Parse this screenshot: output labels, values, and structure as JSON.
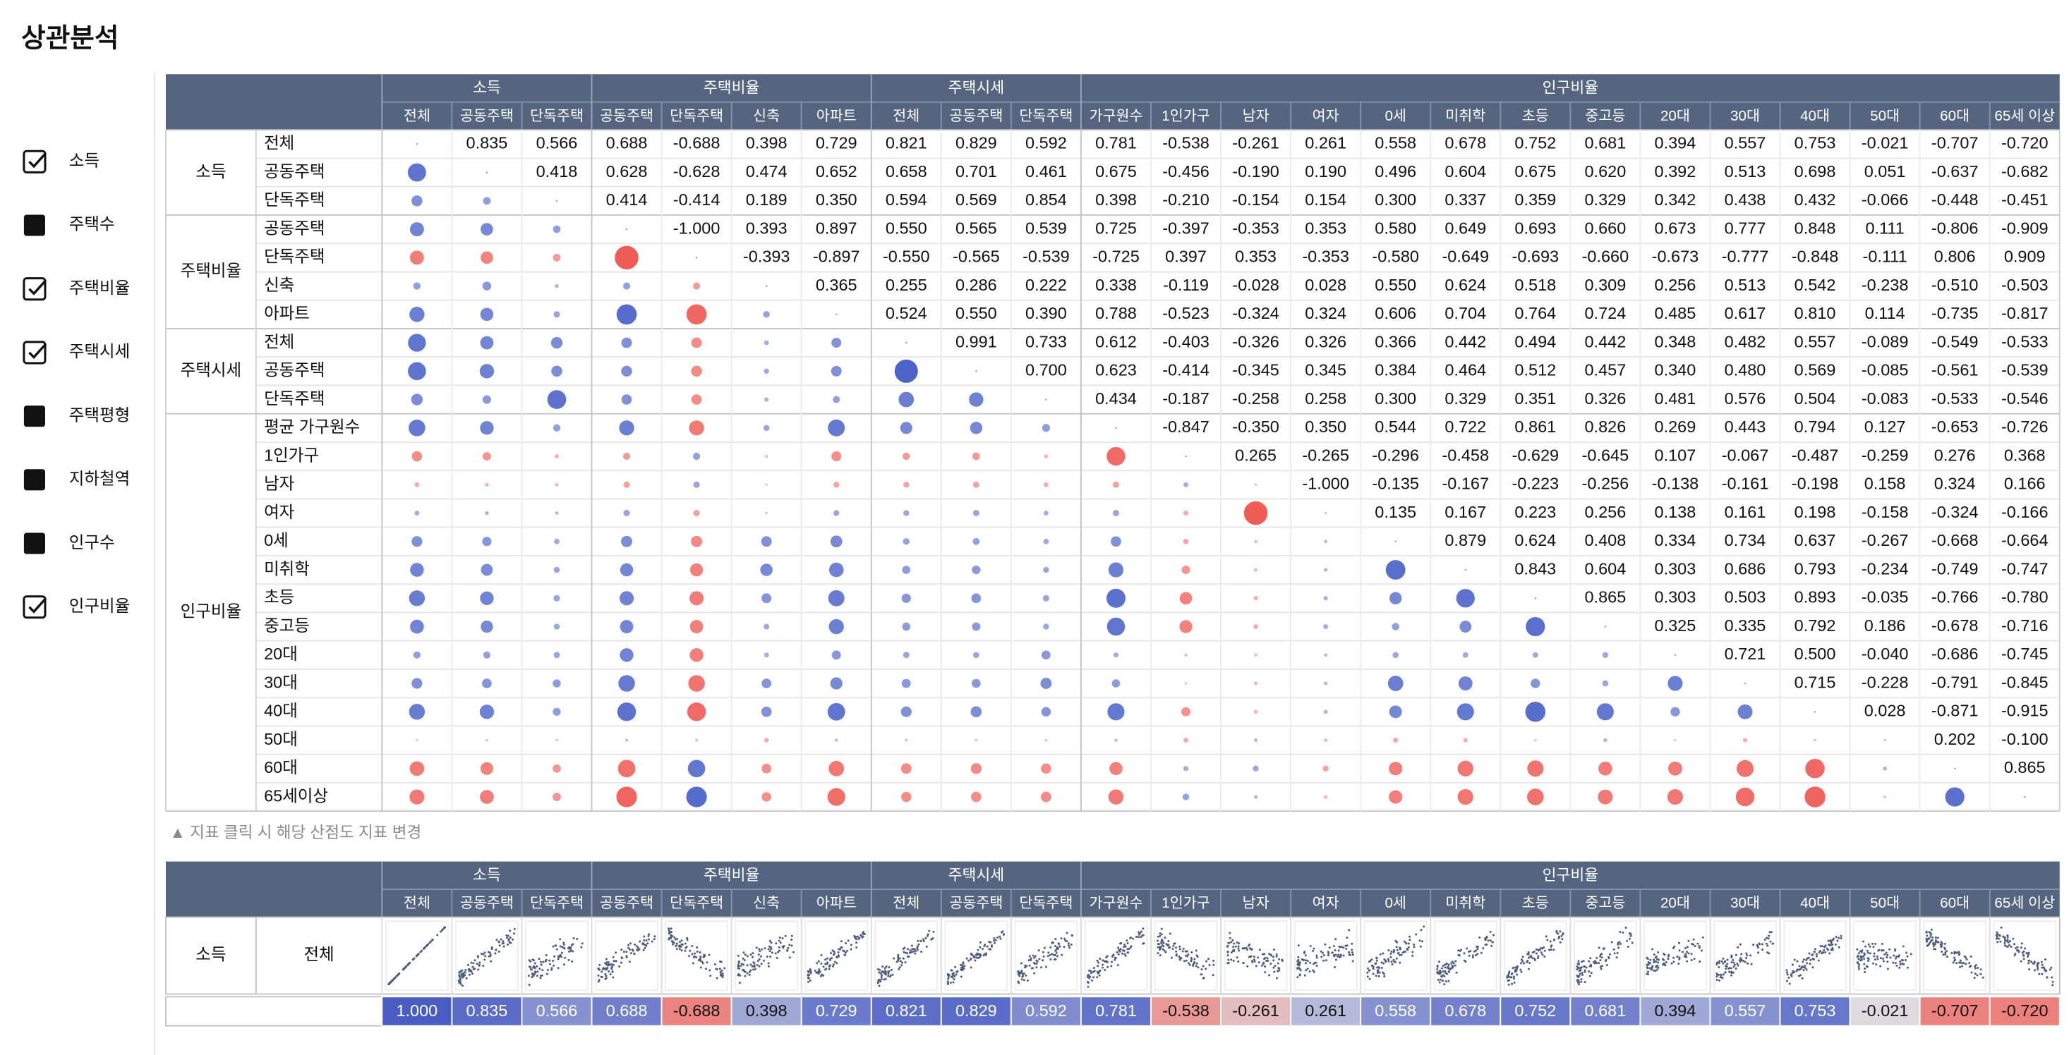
{
  "header": {
    "title": "상관분석"
  },
  "sidebar": {
    "items": [
      {
        "label": "소득",
        "checked": true
      },
      {
        "label": "주택수",
        "checked": false
      },
      {
        "label": "주택비율",
        "checked": true
      },
      {
        "label": "주택시세",
        "checked": true
      },
      {
        "label": "주택평형",
        "checked": false
      },
      {
        "label": "지하철역",
        "checked": false
      },
      {
        "label": "인구수",
        "checked": false
      },
      {
        "label": "인구비율",
        "checked": true
      }
    ]
  },
  "matrix": {
    "column_groups": [
      {
        "name": "소득",
        "items": [
          "전체",
          "공동주택",
          "단독주택"
        ]
      },
      {
        "name": "주택비율",
        "items": [
          "공동주택",
          "단독주택",
          "신축",
          "아파트"
        ]
      },
      {
        "name": "주택시세",
        "items": [
          "전체",
          "공동주택",
          "단독주택"
        ]
      },
      {
        "name": "인구비율",
        "items": [
          "가구원수",
          "1인가구",
          "남자",
          "여자",
          "0세",
          "미취학",
          "초등",
          "중고등",
          "20대",
          "30대",
          "40대",
          "50대",
          "60대",
          "65세 이상"
        ]
      }
    ],
    "row_groups": [
      {
        "name": "소득",
        "items": [
          "전체",
          "공동주택",
          "단독주택"
        ]
      },
      {
        "name": "주택비율",
        "items": [
          "공동주택",
          "단독주택",
          "신축",
          "아파트"
        ]
      },
      {
        "name": "주택시세",
        "items": [
          "전체",
          "공동주택",
          "단독주택"
        ]
      },
      {
        "name": "인구비율",
        "items": [
          "평균 가구원수",
          "1인가구",
          "남자",
          "여자",
          "0세",
          "미취학",
          "초등",
          "중고등",
          "20대",
          "30대",
          "40대",
          "50대",
          "60대",
          "65세이상"
        ]
      }
    ],
    "values": [
      [
        0.835,
        0.566,
        0.688,
        -0.688,
        0.398,
        0.729,
        0.821,
        0.829,
        0.592,
        0.781,
        -0.538,
        -0.261,
        0.261,
        0.558,
        0.678,
        0.752,
        0.681,
        0.394,
        0.557,
        0.753,
        -0.021,
        -0.707,
        -0.72
      ],
      [
        0.418,
        0.628,
        -0.628,
        0.474,
        0.652,
        0.658,
        0.701,
        0.461,
        0.675,
        -0.456,
        -0.19,
        0.19,
        0.496,
        0.604,
        0.675,
        0.62,
        0.392,
        0.513,
        0.698,
        0.051,
        -0.637,
        -0.682
      ],
      [
        0.414,
        -0.414,
        0.189,
        0.35,
        0.594,
        0.569,
        0.854,
        0.398,
        -0.21,
        -0.154,
        0.154,
        0.3,
        0.337,
        0.359,
        0.329,
        0.342,
        0.438,
        0.432,
        -0.066,
        -0.448,
        -0.451
      ],
      [
        -1.0,
        0.393,
        0.897,
        0.55,
        0.565,
        0.539,
        0.725,
        -0.397,
        -0.353,
        0.353,
        0.58,
        0.649,
        0.693,
        0.66,
        0.673,
        0.777,
        0.848,
        0.111,
        -0.806,
        -0.909
      ],
      [
        -0.393,
        -0.897,
        -0.55,
        -0.565,
        -0.539,
        -0.725,
        0.397,
        0.353,
        -0.353,
        -0.58,
        -0.649,
        -0.693,
        -0.66,
        -0.673,
        -0.777,
        -0.848,
        -0.111,
        0.806,
        0.909
      ],
      [
        0.365,
        0.255,
        0.286,
        0.222,
        0.338,
        -0.119,
        -0.028,
        0.028,
        0.55,
        0.624,
        0.518,
        0.309,
        0.256,
        0.513,
        0.542,
        -0.238,
        -0.51,
        -0.503
      ],
      [
        0.524,
        0.55,
        0.39,
        0.788,
        -0.523,
        -0.324,
        0.324,
        0.606,
        0.704,
        0.764,
        0.724,
        0.485,
        0.617,
        0.81,
        0.114,
        -0.735,
        -0.817
      ],
      [
        0.991,
        0.733,
        0.612,
        -0.403,
        -0.326,
        0.326,
        0.366,
        0.442,
        0.494,
        0.442,
        0.348,
        0.482,
        0.557,
        -0.089,
        -0.549,
        -0.533
      ],
      [
        0.7,
        0.623,
        -0.414,
        -0.345,
        0.345,
        0.384,
        0.464,
        0.512,
        0.457,
        0.34,
        0.48,
        0.569,
        -0.085,
        -0.561,
        -0.539
      ],
      [
        0.434,
        -0.187,
        -0.258,
        0.258,
        0.3,
        0.329,
        0.351,
        0.326,
        0.481,
        0.576,
        0.504,
        -0.083,
        -0.533,
        -0.546
      ],
      [
        -0.847,
        -0.35,
        0.35,
        0.544,
        0.722,
        0.861,
        0.826,
        0.269,
        0.443,
        0.794,
        0.127,
        -0.653,
        -0.726
      ],
      [
        0.265,
        -0.265,
        -0.296,
        -0.458,
        -0.629,
        -0.645,
        0.107,
        -0.067,
        -0.487,
        -0.259,
        0.276,
        0.368
      ],
      [
        -1.0,
        -0.135,
        -0.167,
        -0.223,
        -0.256,
        -0.138,
        -0.161,
        -0.198,
        0.158,
        0.324,
        0.166
      ],
      [
        0.135,
        0.167,
        0.223,
        0.256,
        0.138,
        0.161,
        0.198,
        -0.158,
        -0.324,
        -0.166
      ],
      [
        0.879,
        0.624,
        0.408,
        0.334,
        0.734,
        0.637,
        -0.267,
        -0.668,
        -0.664
      ],
      [
        0.843,
        0.604,
        0.303,
        0.686,
        0.793,
        -0.234,
        -0.749,
        -0.747
      ],
      [
        0.865,
        0.303,
        0.503,
        0.893,
        -0.035,
        -0.766,
        -0.78
      ],
      [
        0.325,
        0.335,
        0.792,
        0.186,
        -0.678,
        -0.716
      ],
      [
        0.721,
        0.5,
        -0.04,
        -0.686,
        -0.745
      ],
      [
        0.715,
        -0.228,
        -0.791,
        -0.845
      ],
      [
        0.028,
        -0.871,
        -0.915
      ],
      [
        0.202,
        -0.1
      ],
      [
        0.865
      ]
    ],
    "value_labels": [
      [
        "0.835",
        "0.566",
        "0.688",
        "-0.688",
        "0.398",
        "0.729",
        "0.821",
        "0.829",
        "0.592",
        "0.781",
        "-0.538",
        "-0.261",
        "0.261",
        "0.558",
        "0.678",
        "0.752",
        "0.681",
        "0.394",
        "0.557",
        "0.753",
        "-0.021",
        "-0.707",
        "-0.720"
      ],
      [
        "0.418",
        "0.628",
        "-0.628",
        "0.474",
        "0.652",
        "0.658",
        "0.701",
        "0.461",
        "0.675",
        "-0.456",
        "-0.190",
        "0.190",
        "0.496",
        "0.604",
        "0.675",
        "0.620",
        "0.392",
        "0.513",
        "0.698",
        "0.051",
        "-0.637",
        "-0.682"
      ],
      [
        "0.414",
        "-0.414",
        "0.189",
        "0.350",
        "0.594",
        "0.569",
        "0.854",
        "0.398",
        "-0.210",
        "-0.154",
        "0.154",
        "0.300",
        "0.337",
        "0.359",
        "0.329",
        "0.342",
        "0.438",
        "0.432",
        "-0.066",
        "-0.448",
        "-0.451"
      ],
      [
        "-1.000",
        "0.393",
        "0.897",
        "0.550",
        "0.565",
        "0.539",
        "0.725",
        "-0.397",
        "-0.353",
        "0.353",
        "0.580",
        "0.649",
        "0.693",
        "0.660",
        "0.673",
        "0.777",
        "0.848",
        "0.111",
        "-0.806",
        "-0.909"
      ],
      [
        "-0.393",
        "-0.897",
        "-0.550",
        "-0.565",
        "-0.539",
        "-0.725",
        "0.397",
        "0.353",
        "-0.353",
        "-0.580",
        "-0.649",
        "-0.693",
        "-0.660",
        "-0.673",
        "-0.777",
        "-0.848",
        "-0.111",
        "0.806",
        "0.909"
      ],
      [
        "0.365",
        "0.255",
        "0.286",
        "0.222",
        "0.338",
        "-0.119",
        "-0.028",
        "0.028",
        "0.550",
        "0.624",
        "0.518",
        "0.309",
        "0.256",
        "0.513",
        "0.542",
        "-0.238",
        "-0.510",
        "-0.503"
      ],
      [
        "0.524",
        "0.550",
        "0.390",
        "0.788",
        "-0.523",
        "-0.324",
        "0.324",
        "0.606",
        "0.704",
        "0.764",
        "0.724",
        "0.485",
        "0.617",
        "0.810",
        "0.114",
        "-0.735",
        "-0.817"
      ],
      [
        "0.991",
        "0.733",
        "0.612",
        "-0.403",
        "-0.326",
        "0.326",
        "0.366",
        "0.442",
        "0.494",
        "0.442",
        "0.348",
        "0.482",
        "0.557",
        "-0.089",
        "-0.549",
        "-0.533"
      ],
      [
        "0.700",
        "0.623",
        "-0.414",
        "-0.345",
        "0.345",
        "0.384",
        "0.464",
        "0.512",
        "0.457",
        "0.340",
        "0.480",
        "0.569",
        "-0.085",
        "-0.561",
        "-0.539"
      ],
      [
        "0.434",
        "-0.187",
        "-0.258",
        "0.258",
        "0.300",
        "0.329",
        "0.351",
        "0.326",
        "0.481",
        "0.576",
        "0.504",
        "-0.083",
        "-0.533",
        "-0.546"
      ],
      [
        "-0.847",
        "-0.350",
        "0.350",
        "0.544",
        "0.722",
        "0.861",
        "0.826",
        "0.269",
        "0.443",
        "0.794",
        "0.127",
        "-0.653",
        "-0.726"
      ],
      [
        "0.265",
        "-0.265",
        "-0.296",
        "-0.458",
        "-0.629",
        "-0.645",
        "0.107",
        "-0.067",
        "-0.487",
        "-0.259",
        "0.276",
        "0.368"
      ],
      [
        "-1.000",
        "-0.135",
        "-0.167",
        "-0.223",
        "-0.256",
        "-0.138",
        "-0.161",
        "-0.198",
        "0.158",
        "0.324",
        "0.166"
      ],
      [
        "0.135",
        "0.167",
        "0.223",
        "0.256",
        "0.138",
        "0.161",
        "0.198",
        "-0.158",
        "-0.324",
        "-0.166"
      ],
      [
        "0.879",
        "0.624",
        "0.408",
        "0.334",
        "0.734",
        "0.637",
        "-0.267",
        "-0.668",
        "-0.664"
      ],
      [
        "0.843",
        "0.604",
        "0.303",
        "0.686",
        "0.793",
        "-0.234",
        "-0.749",
        "-0.747"
      ],
      [
        "0.865",
        "0.303",
        "0.503",
        "0.893",
        "-0.035",
        "-0.766",
        "-0.780"
      ],
      [
        "0.325",
        "0.335",
        "0.792",
        "0.186",
        "-0.678",
        "-0.716"
      ],
      [
        "0.721",
        "0.500",
        "-0.040",
        "-0.686",
        "-0.745"
      ],
      [
        "0.715",
        "-0.228",
        "-0.791",
        "-0.845"
      ],
      [
        "0.028",
        "-0.871",
        "-0.915"
      ],
      [
        "0.202",
        "-0.100"
      ],
      [
        "0.865"
      ]
    ]
  },
  "note": "▲ 지표 클릭 시 해당 산점도 지표 변경",
  "selected": {
    "group": "소득",
    "item": "전체",
    "values": [
      1.0,
      0.835,
      0.566,
      0.688,
      -0.688,
      0.398,
      0.729,
      0.821,
      0.829,
      0.592,
      0.781,
      -0.538,
      -0.261,
      0.261,
      0.558,
      0.678,
      0.752,
      0.681,
      0.394,
      0.557,
      0.753,
      -0.021,
      -0.707,
      -0.72
    ],
    "value_labels": [
      "1.000",
      "0.835",
      "0.566",
      "0.688",
      "-0.688",
      "0.398",
      "0.729",
      "0.821",
      "0.829",
      "0.592",
      "0.781",
      "-0.538",
      "-0.261",
      "0.261",
      "0.558",
      "0.678",
      "0.752",
      "0.681",
      "0.394",
      "0.557",
      "0.753",
      "-0.021",
      "-0.707",
      "-0.720"
    ]
  }
}
